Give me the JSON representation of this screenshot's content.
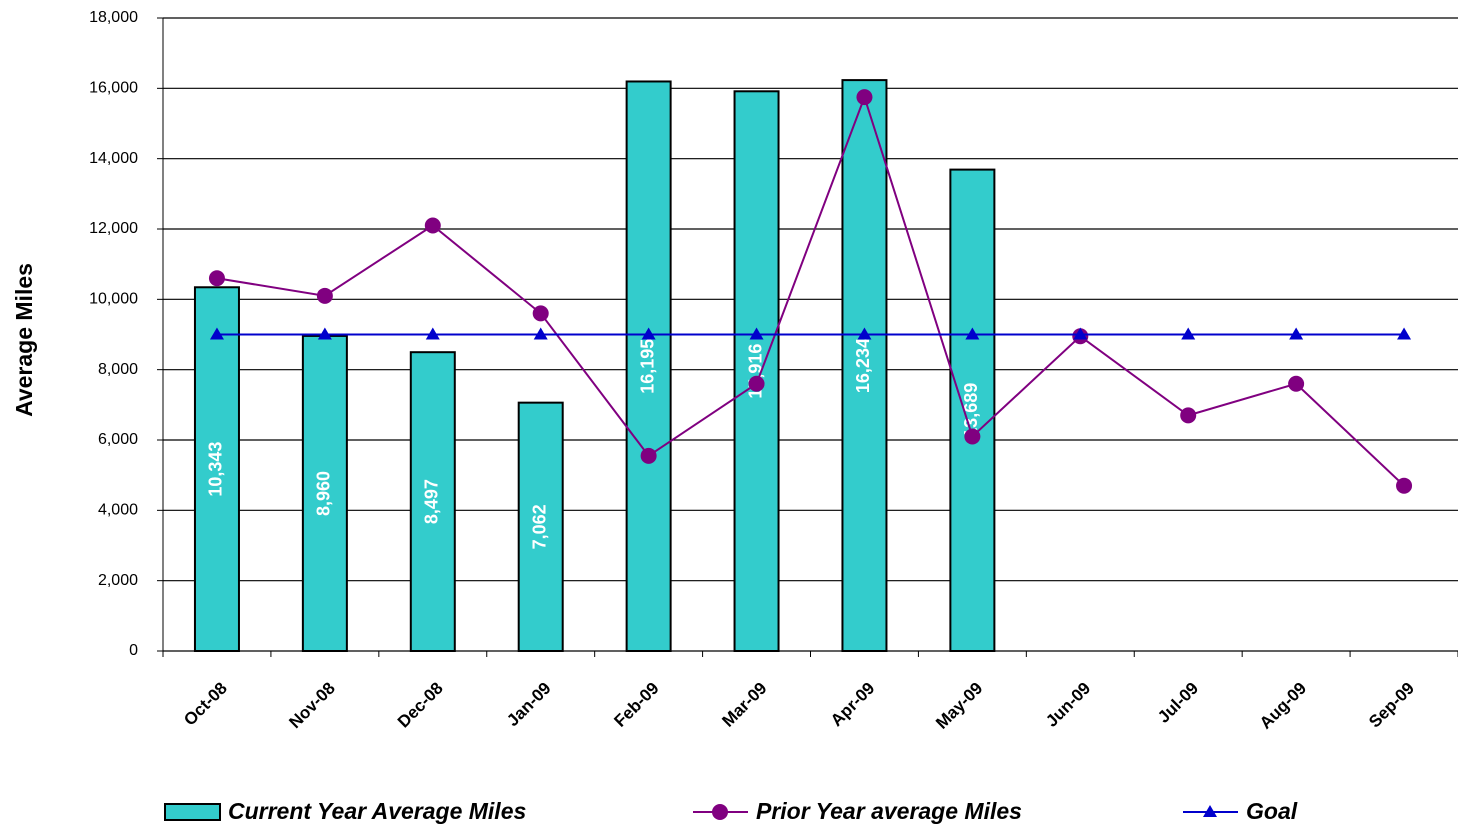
{
  "chart_data": {
    "type": "bar",
    "y_label": "Average Miles",
    "categories": [
      "Oct-08",
      "Nov-08",
      "Dec-08",
      "Jan-09",
      "Feb-09",
      "Mar-09",
      "Apr-09",
      "May-09",
      "Jun-09",
      "Jul-09",
      "Aug-09",
      "Sep-09"
    ],
    "series": [
      {
        "name": "Current Year Average Miles",
        "type": "bar",
        "color": "#33cccc",
        "values": [
          10343,
          8960,
          8497,
          7062,
          16195,
          15916,
          16234,
          13689,
          null,
          null,
          null,
          null
        ],
        "value_labels": [
          "10,343",
          "8,960",
          "8,497",
          "7,062",
          "16,195",
          "15,916",
          "16,234",
          "13,689",
          null,
          null,
          null,
          null
        ]
      },
      {
        "name": "Prior Year average Miles",
        "type": "line",
        "marker": "circle",
        "color": "#800080",
        "values": [
          10600,
          10100,
          12100,
          9600,
          5550,
          7600,
          15750,
          6100,
          8950,
          6700,
          7600,
          4700
        ]
      },
      {
        "name": "Goal",
        "type": "line",
        "marker": "triangle",
        "color": "#0000cc",
        "values": [
          9000,
          9000,
          9000,
          9000,
          9000,
          9000,
          9000,
          9000,
          9000,
          9000,
          9000,
          9000
        ]
      }
    ],
    "ylim": [
      0,
      18000
    ],
    "yticks": [
      0,
      {
        "value": 2000,
        "label": "2,000"
      },
      {
        "value": 4000,
        "label": "4,000"
      },
      {
        "value": 6000,
        "label": "6,000"
      },
      {
        "value": 8000,
        "label": "8,000"
      },
      {
        "value": 10000,
        "label": "10,000"
      },
      {
        "value": 12000,
        "label": "12,000"
      },
      {
        "value": 14000,
        "label": "14,000"
      },
      {
        "value": 16000,
        "label": "16,000"
      },
      {
        "value": 18000,
        "label": "18,000"
      }
    ],
    "grid": true
  }
}
